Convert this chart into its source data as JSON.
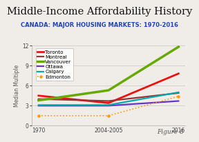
{
  "title": "Middle-Income Affordability History",
  "subtitle": "CANADA: MAJOR HOUSING MARKETS: 1970-2016",
  "ylabel": "Median Multiple",
  "xlabel_ticks": [
    "1970",
    "2004-2005",
    "2016"
  ],
  "x_positions": [
    0,
    1,
    2
  ],
  "ylim": [
    0,
    12
  ],
  "yticks": [
    0,
    3,
    6,
    9,
    12
  ],
  "background_color": "#f0ede8",
  "series": {
    "Toronto": {
      "color": "#ee1111",
      "values": [
        4.5,
        3.4,
        7.8
      ],
      "linestyle": "-",
      "linewidth": 2.0,
      "marker": null
    },
    "Montreal": {
      "color": "#993333",
      "values": [
        4.0,
        3.7,
        4.9
      ],
      "linestyle": "-",
      "linewidth": 1.6,
      "marker": null
    },
    "Vancouver": {
      "color": "#66aa00",
      "values": [
        3.8,
        5.3,
        11.8
      ],
      "linestyle": "-",
      "linewidth": 2.5,
      "marker": null
    },
    "Ottawa": {
      "color": "#6633cc",
      "values": [
        3.0,
        3.0,
        3.7
      ],
      "linestyle": "-",
      "linewidth": 1.6,
      "marker": null
    },
    "Calgary": {
      "color": "#00aaaa",
      "values": [
        3.1,
        3.1,
        5.0
      ],
      "linestyle": "-",
      "linewidth": 1.6,
      "marker": null
    },
    "Edmonton": {
      "color": "#ff9900",
      "values": [
        1.5,
        1.5,
        4.4
      ],
      "linestyle": ":",
      "linewidth": 1.2,
      "marker": "o",
      "markersize": 2.2
    }
  },
  "legend_fontsize": 5.2,
  "title_fontsize": 10.5,
  "subtitle_fontsize": 6.0,
  "ylabel_fontsize": 5.5,
  "tick_fontsize": 5.5,
  "figure8_text": "Figure 8"
}
